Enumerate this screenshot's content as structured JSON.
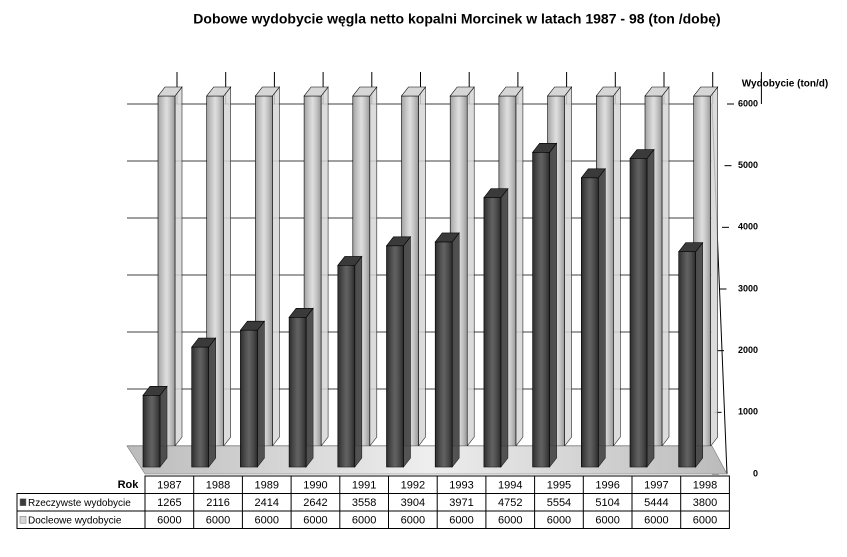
{
  "chart_data": {
    "type": "bar3d",
    "title": "Dobowe wydobycie węgla netto kopalni Morcinek w latach 1987 - 98 (ton /dobę)",
    "y_axis_label": "Wydobycie (ton/d)",
    "x_axis_label": "Rok",
    "categories": [
      "1987",
      "1988",
      "1989",
      "1990",
      "1991",
      "1992",
      "1993",
      "1994",
      "1995",
      "1996",
      "1997",
      "1998"
    ],
    "series": [
      {
        "name": "Rzeczywste wydobycie",
        "color": "#3a3a3a",
        "values": [
          1265,
          2116,
          2414,
          2642,
          3558,
          3904,
          3971,
          4752,
          5554,
          5104,
          5444,
          3800
        ]
      },
      {
        "name": "Docleowe wydobycie",
        "color": "#d6d6d6",
        "values": [
          6000,
          6000,
          6000,
          6000,
          6000,
          6000,
          6000,
          6000,
          6000,
          6000,
          6000,
          6000
        ]
      }
    ],
    "ylim": [
      0,
      6000
    ],
    "yticks": [
      0,
      1000,
      2000,
      3000,
      4000,
      5000,
      6000
    ],
    "grid": true
  }
}
